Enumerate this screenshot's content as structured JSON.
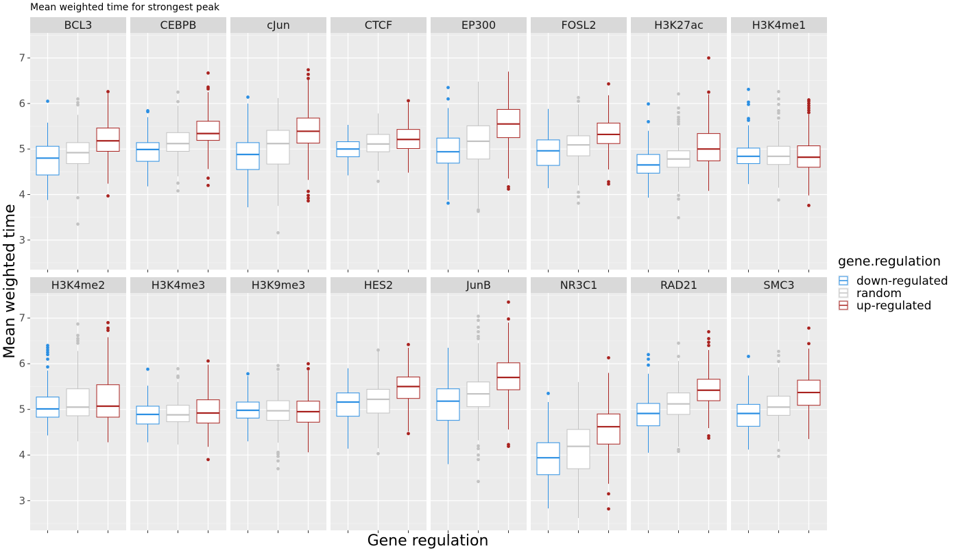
{
  "chart_data": {
    "type": "boxplot",
    "title": "Mean weighted time for strongest peak",
    "xlabel": "Gene regulation",
    "ylabel": "Mean weighted time",
    "ylim": [
      2.35,
      7.55
    ],
    "yticks": [
      3,
      4,
      5,
      6,
      7
    ],
    "grid": true,
    "facet_layout": {
      "rows": 2,
      "cols": 8
    },
    "legend": {
      "title": "gene.regulation",
      "position": "right",
      "entries": [
        {
          "label": "down-regulated",
          "color": "#2b8fe3"
        },
        {
          "label": "random",
          "color": "#c2c2c2"
        },
        {
          "label": "up-regulated",
          "color": "#a9221f"
        }
      ]
    },
    "groups": [
      "down-regulated",
      "random",
      "up-regulated"
    ],
    "panels": [
      {
        "name": "BCL3",
        "boxes": [
          {
            "q1": 4.43,
            "median": 4.8,
            "q3": 5.06,
            "whislo": 3.88,
            "whishi": 5.58,
            "outliers": [
              6.05
            ]
          },
          {
            "q1": 4.68,
            "median": 4.92,
            "q3": 5.14,
            "whislo": 4.02,
            "whishi": 5.75,
            "outliers": [
              5.97,
              6.02,
              6.1,
              3.93,
              3.35
            ]
          },
          {
            "q1": 4.95,
            "median": 5.18,
            "q3": 5.46,
            "whislo": 4.24,
            "whishi": 6.22,
            "outliers": [
              6.26,
              3.97
            ]
          }
        ]
      },
      {
        "name": "CEBPB",
        "boxes": [
          {
            "q1": 4.73,
            "median": 4.99,
            "q3": 5.14,
            "whislo": 4.18,
            "whishi": 5.7,
            "outliers": [
              5.82,
              5.84
            ]
          },
          {
            "q1": 4.95,
            "median": 5.12,
            "q3": 5.36,
            "whislo": 4.4,
            "whishi": 5.95,
            "outliers": [
              6.04,
              6.25,
              4.25,
              4.08
            ]
          },
          {
            "q1": 5.19,
            "median": 5.34,
            "q3": 5.61,
            "whislo": 4.56,
            "whishi": 6.25,
            "outliers": [
              6.32,
              6.36,
              6.67,
              4.36,
              4.2
            ]
          }
        ]
      },
      {
        "name": "cJun",
        "boxes": [
          {
            "q1": 4.55,
            "median": 4.88,
            "q3": 5.14,
            "whislo": 3.72,
            "whishi": 6.0,
            "outliers": [
              6.14
            ]
          },
          {
            "q1": 4.67,
            "median": 5.12,
            "q3": 5.41,
            "whislo": 3.75,
            "whishi": 6.12,
            "outliers": [
              3.16
            ]
          },
          {
            "q1": 5.13,
            "median": 5.39,
            "q3": 5.68,
            "whislo": 4.32,
            "whishi": 6.52,
            "outliers": [
              6.55,
              6.64,
              6.74,
              4.07,
              3.98,
              3.92,
              3.86
            ]
          }
        ]
      },
      {
        "name": "CTCF",
        "boxes": [
          {
            "q1": 4.83,
            "median": 5.0,
            "q3": 5.16,
            "whislo": 4.42,
            "whishi": 5.53,
            "outliers": []
          },
          {
            "q1": 4.94,
            "median": 5.11,
            "q3": 5.32,
            "whislo": 4.52,
            "whishi": 5.78,
            "outliers": [
              4.29
            ]
          },
          {
            "q1": 5.01,
            "median": 5.21,
            "q3": 5.43,
            "whislo": 4.48,
            "whishi": 6.02,
            "outliers": [
              6.06
            ]
          }
        ]
      },
      {
        "name": "EP300",
        "boxes": [
          {
            "q1": 4.69,
            "median": 4.94,
            "q3": 5.24,
            "whislo": 3.88,
            "whishi": 5.9,
            "outliers": [
              6.1,
              6.35,
              3.81
            ]
          },
          {
            "q1": 4.78,
            "median": 5.17,
            "q3": 5.51,
            "whislo": 3.7,
            "whishi": 6.48,
            "outliers": [
              3.66,
              3.63
            ]
          },
          {
            "q1": 5.25,
            "median": 5.55,
            "q3": 5.87,
            "whislo": 4.35,
            "whishi": 6.7,
            "outliers": [
              4.17,
              4.12
            ]
          }
        ]
      },
      {
        "name": "FOSL2",
        "boxes": [
          {
            "q1": 4.64,
            "median": 4.96,
            "q3": 5.2,
            "whislo": 4.14,
            "whishi": 5.88,
            "outliers": []
          },
          {
            "q1": 4.85,
            "median": 5.09,
            "q3": 5.29,
            "whislo": 4.2,
            "whishi": 5.98,
            "outliers": [
              6.05,
              6.13,
              4.05,
              3.95,
              3.81
            ]
          },
          {
            "q1": 5.12,
            "median": 5.32,
            "q3": 5.57,
            "whislo": 4.55,
            "whishi": 6.18,
            "outliers": [
              6.43,
              4.28,
              4.23
            ]
          }
        ]
      },
      {
        "name": "H3K27ac",
        "boxes": [
          {
            "q1": 4.47,
            "median": 4.65,
            "q3": 4.88,
            "whislo": 3.93,
            "whishi": 5.4,
            "outliers": [
              5.6,
              5.99
            ]
          },
          {
            "q1": 4.6,
            "median": 4.78,
            "q3": 4.96,
            "whislo": 4.06,
            "whishi": 5.48,
            "outliers": [
              5.55,
              5.6,
              5.65,
              5.7,
              5.8,
              5.9,
              6.21,
              3.98,
              3.9,
              3.49
            ]
          },
          {
            "q1": 4.74,
            "median": 5.0,
            "q3": 5.34,
            "whislo": 4.08,
            "whishi": 6.2,
            "outliers": [
              6.25,
              7.0
            ]
          }
        ]
      },
      {
        "name": "H3K4me1",
        "boxes": [
          {
            "q1": 4.68,
            "median": 4.84,
            "q3": 5.02,
            "whislo": 4.23,
            "whishi": 5.52,
            "outliers": [
              5.63,
              5.67,
              5.98,
              6.03,
              6.31
            ]
          },
          {
            "q1": 4.66,
            "median": 4.84,
            "q3": 5.06,
            "whislo": 4.15,
            "whishi": 5.62,
            "outliers": [
              5.68,
              5.79,
              5.84,
              5.98,
              6.1,
              6.26,
              3.88
            ]
          },
          {
            "q1": 4.6,
            "median": 4.82,
            "q3": 5.07,
            "whislo": 3.98,
            "whishi": 5.76,
            "outliers": [
              5.8,
              5.85,
              5.9,
              5.95,
              6.0,
              6.05,
              6.08,
              3.76
            ]
          }
        ]
      },
      {
        "name": "H3K4me2",
        "boxes": [
          {
            "q1": 4.83,
            "median": 5.01,
            "q3": 5.27,
            "whislo": 4.43,
            "whishi": 5.85,
            "outliers": [
              5.93,
              6.1,
              6.2,
              6.25,
              6.3,
              6.35,
              6.4
            ]
          },
          {
            "q1": 4.86,
            "median": 5.05,
            "q3": 5.45,
            "whislo": 4.3,
            "whishi": 6.28,
            "outliers": [
              6.45,
              6.5,
              6.55,
              6.62,
              6.87
            ]
          },
          {
            "q1": 4.83,
            "median": 5.07,
            "q3": 5.54,
            "whislo": 4.28,
            "whishi": 6.58,
            "outliers": [
              6.73,
              6.78,
              6.9
            ]
          }
        ]
      },
      {
        "name": "H3K4me3",
        "boxes": [
          {
            "q1": 4.68,
            "median": 4.89,
            "q3": 5.07,
            "whislo": 4.28,
            "whishi": 5.52,
            "outliers": [
              5.88
            ]
          },
          {
            "q1": 4.73,
            "median": 4.88,
            "q3": 5.09,
            "whislo": 4.23,
            "whishi": 5.6,
            "outliers": [
              5.7,
              5.73,
              5.89
            ]
          },
          {
            "q1": 4.7,
            "median": 4.92,
            "q3": 5.21,
            "whislo": 4.18,
            "whishi": 5.98,
            "outliers": [
              6.06,
              3.9
            ]
          }
        ]
      },
      {
        "name": "H3K9me3",
        "boxes": [
          {
            "q1": 4.81,
            "median": 4.98,
            "q3": 5.16,
            "whislo": 4.3,
            "whishi": 5.73,
            "outliers": [
              5.78
            ]
          },
          {
            "q1": 4.76,
            "median": 4.97,
            "q3": 5.19,
            "whislo": 4.27,
            "whishi": 5.83,
            "outliers": [
              5.88,
              5.96,
              4.06,
              4.02,
              3.97,
              3.87,
              3.7
            ]
          },
          {
            "q1": 4.72,
            "median": 4.95,
            "q3": 5.18,
            "whislo": 4.06,
            "whishi": 5.85,
            "outliers": [
              5.89,
              6.0
            ]
          }
        ]
      },
      {
        "name": "HES2",
        "boxes": [
          {
            "q1": 4.85,
            "median": 5.16,
            "q3": 5.36,
            "whislo": 4.14,
            "whishi": 5.9,
            "outliers": []
          },
          {
            "q1": 4.92,
            "median": 5.22,
            "q3": 5.44,
            "whislo": 4.15,
            "whishi": 6.28,
            "outliers": [
              6.3,
              4.03
            ]
          },
          {
            "q1": 5.24,
            "median": 5.5,
            "q3": 5.71,
            "whislo": 4.52,
            "whishi": 6.35,
            "outliers": [
              6.42,
              4.47
            ]
          }
        ]
      },
      {
        "name": "JunB",
        "boxes": [
          {
            "q1": 4.76,
            "median": 5.18,
            "q3": 5.45,
            "whislo": 3.8,
            "whishi": 6.35,
            "outliers": []
          },
          {
            "q1": 5.06,
            "median": 5.34,
            "q3": 5.6,
            "whislo": 4.32,
            "whishi": 6.45,
            "outliers": [
              6.55,
              6.6,
              6.7,
              6.8,
              6.95,
              7.04,
              4.2,
              4.14,
              4.0,
              3.9,
              3.42
            ]
          },
          {
            "q1": 5.43,
            "median": 5.7,
            "q3": 6.02,
            "whislo": 4.56,
            "whishi": 6.9,
            "outliers": [
              6.98,
              7.35,
              4.23,
              4.19
            ]
          }
        ]
      },
      {
        "name": "NR3C1",
        "boxes": [
          {
            "q1": 3.57,
            "median": 3.94,
            "q3": 4.27,
            "whislo": 2.83,
            "whishi": 5.16,
            "outliers": [
              5.35
            ]
          },
          {
            "q1": 3.7,
            "median": 4.19,
            "q3": 4.56,
            "whislo": 2.62,
            "whishi": 5.6,
            "outliers": []
          },
          {
            "q1": 4.24,
            "median": 4.62,
            "q3": 4.9,
            "whislo": 3.37,
            "whishi": 5.8,
            "outliers": [
              6.13,
              3.15,
              2.82
            ]
          }
        ]
      },
      {
        "name": "RAD21",
        "boxes": [
          {
            "q1": 4.64,
            "median": 4.91,
            "q3": 5.13,
            "whislo": 4.05,
            "whishi": 5.78,
            "outliers": [
              5.97,
              6.1,
              6.2
            ]
          },
          {
            "q1": 4.89,
            "median": 5.12,
            "q3": 5.36,
            "whislo": 4.18,
            "whishi": 6.06,
            "outliers": [
              6.16,
              6.45,
              4.12,
              4.08
            ]
          },
          {
            "q1": 5.19,
            "median": 5.42,
            "q3": 5.66,
            "whislo": 4.59,
            "whishi": 6.3,
            "outliers": [
              6.4,
              6.47,
              6.55,
              6.7,
              4.42,
              4.37
            ]
          }
        ]
      },
      {
        "name": "SMC3",
        "boxes": [
          {
            "q1": 4.63,
            "median": 4.91,
            "q3": 5.11,
            "whislo": 4.12,
            "whishi": 5.74,
            "outliers": [
              6.16
            ]
          },
          {
            "q1": 4.87,
            "median": 5.05,
            "q3": 5.29,
            "whislo": 4.3,
            "whishi": 5.92,
            "outliers": [
              6.05,
              6.18,
              6.27,
              4.1,
              3.97
            ]
          },
          {
            "q1": 5.09,
            "median": 5.37,
            "q3": 5.64,
            "whislo": 4.35,
            "whishi": 6.33,
            "outliers": [
              6.44,
              6.78
            ]
          }
        ]
      }
    ]
  }
}
